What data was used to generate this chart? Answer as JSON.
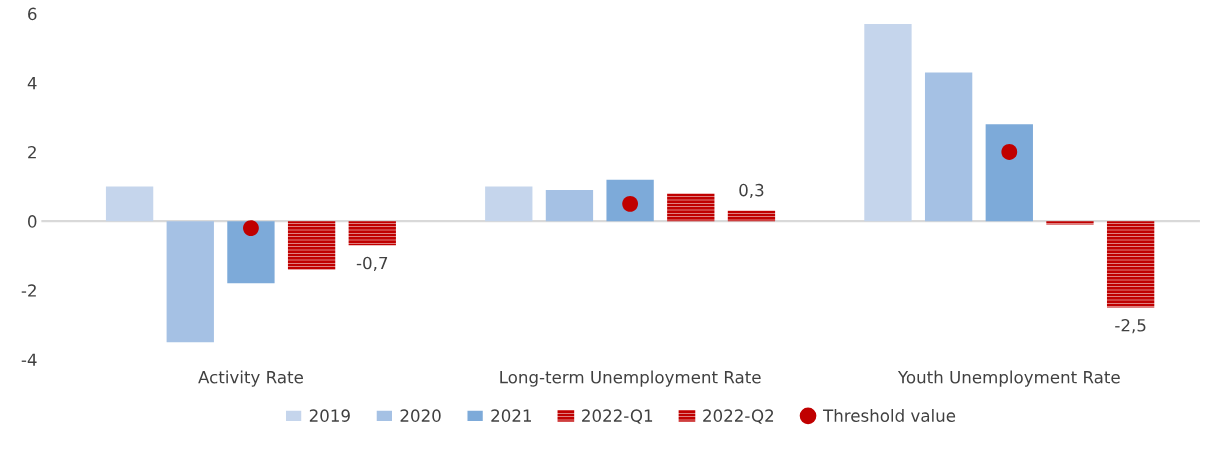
{
  "chart_data": {
    "type": "bar",
    "categories": [
      "Activity Rate",
      "Long-term Unemployment Rate",
      "Youth Unemployment Rate"
    ],
    "series": [
      {
        "name": "2019",
        "color": "#c5d5ec",
        "values": [
          1.0,
          1.0,
          5.7
        ]
      },
      {
        "name": "2020",
        "color": "#a5c1e4",
        "values": [
          -3.5,
          0.9,
          4.3
        ]
      },
      {
        "name": "2021",
        "color": "#7daad9",
        "values": [
          -1.8,
          1.2,
          2.8
        ]
      },
      {
        "name": "2022-Q1",
        "color": "#c00000",
        "line_style": "dashed",
        "values": [
          -1.4,
          0.8,
          -0.1
        ]
      },
      {
        "name": "2022-Q2",
        "color": "#c00000",
        "line_style": "dashed",
        "values": [
          -0.7,
          0.3,
          -2.5
        ],
        "value_labels": [
          "-0,7",
          "0,3",
          "-2,5"
        ]
      },
      {
        "name": "Threshold value",
        "type": "scatter",
        "marker": "circle",
        "color": "#c00000",
        "x": [
          "Activity Rate",
          "Long-term Unemployment Rate",
          "Youth Unemployment Rate"
        ],
        "values": [
          -0.2,
          0.5,
          2.0
        ]
      }
    ],
    "ylim": [
      -4,
      6
    ],
    "yticks": [
      -4,
      -2,
      0,
      2,
      4,
      6
    ],
    "legend": "bottom"
  }
}
